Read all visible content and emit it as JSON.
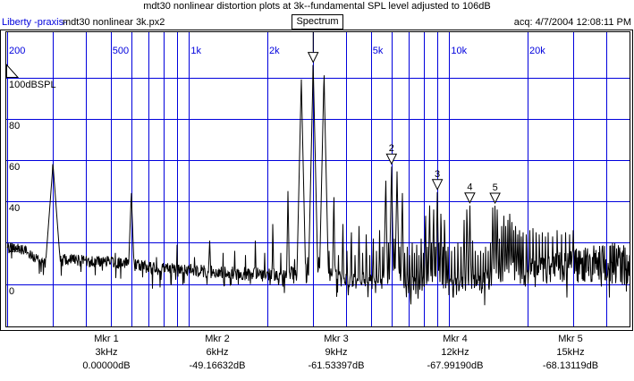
{
  "header": {
    "title": "mdt30 nonlinear distortion plots at 3k--fundamental SPL level adjusted to 106dB",
    "app_label": "Liberty -praxis-",
    "file_name": "mdt30 nonlinear 3k.px2",
    "view_button_label": "Spectrum",
    "acq_label": "acq: 4/7/2004 12:08:11 PM"
  },
  "colors": {
    "grid_blue": "#0000dd",
    "tick_label_blue": "#0000dd",
    "trace_black": "#000000",
    "frame_black": "#000000",
    "background": "#ffffff"
  },
  "markers_table": {
    "rows": [
      {
        "name": "Mkr 1",
        "freq": "3kHz",
        "level": "0.00000dB"
      },
      {
        "name": "Mkr 2",
        "freq": "6kHz",
        "level": "-49.16632dB"
      },
      {
        "name": "Mkr 3",
        "freq": "9kHz",
        "level": "-61.53397dB"
      },
      {
        "name": "Mkr 4",
        "freq": "12kHz",
        "level": "-67.99190dB"
      },
      {
        "name": "Mkr 5",
        "freq": "15kHz",
        "level": "-68.13119dB"
      }
    ]
  },
  "chart_data": {
    "type": "line",
    "title": "mdt30 nonlinear distortion plots at 3k--fundamental SPL level adjusted to 106dB",
    "y_unit": "dBSPL",
    "x_scale": "log",
    "xlim_hz": [
      200,
      49000
    ],
    "ylim_labeled_db": [
      0,
      100
    ],
    "grid": true,
    "x_gridlines_hz": [
      200,
      300,
      400,
      500,
      600,
      700,
      800,
      900,
      1000,
      2000,
      3000,
      4000,
      5000,
      6000,
      7000,
      8000,
      9000,
      10000,
      20000,
      30000,
      40000
    ],
    "y_gridlines_db": [
      100,
      80,
      60,
      40,
      20,
      0
    ],
    "x_tick_labels": [
      {
        "hz": 200,
        "label": "200"
      },
      {
        "hz": 500,
        "label": "500"
      },
      {
        "hz": 1000,
        "label": "1k"
      },
      {
        "hz": 2000,
        "label": "2k"
      },
      {
        "hz": 5000,
        "label": "5k"
      },
      {
        "hz": 10000,
        "label": "10k"
      },
      {
        "hz": 20000,
        "label": "20k"
      }
    ],
    "y_tick_labels": [
      {
        "db": 100,
        "label": "100dBSPL"
      },
      {
        "db": 80,
        "label": "80"
      },
      {
        "db": 60,
        "label": "60"
      },
      {
        "db": 40,
        "label": "40"
      },
      {
        "db": 20,
        "label": "20"
      },
      {
        "db": 0,
        "label": "0"
      }
    ],
    "fundamental": {
      "freq_hz": 3000,
      "db_spl": 106
    },
    "reference_flag": {
      "top_db_spl": 106,
      "bottom_db_spl": 100
    },
    "markers": [
      {
        "n": 1,
        "freq_hz": 3000,
        "rel_db": 0.0,
        "number_visible": false
      },
      {
        "n": 2,
        "freq_hz": 6000,
        "rel_db": -49.16632,
        "number_visible": true
      },
      {
        "n": 3,
        "freq_hz": 9000,
        "rel_db": -61.53397,
        "number_visible": true
      },
      {
        "n": 4,
        "freq_hz": 12000,
        "rel_db": -67.9919,
        "number_visible": true
      },
      {
        "n": 5,
        "freq_hz": 15000,
        "rel_db": -68.13119,
        "number_visible": true
      }
    ],
    "peaks_hz_dbspl_width": [
      [
        300,
        58,
        6
      ],
      [
        450,
        13
      ],
      [
        520,
        15,
        2
      ],
      [
        600,
        44,
        3
      ],
      [
        750,
        13
      ],
      [
        900,
        19
      ],
      [
        1050,
        13
      ],
      [
        1200,
        21,
        3
      ],
      [
        1350,
        15
      ],
      [
        1500,
        16
      ],
      [
        1650,
        14
      ],
      [
        1800,
        21
      ],
      [
        1950,
        15
      ],
      [
        2100,
        29
      ],
      [
        2250,
        15
      ],
      [
        2400,
        45
      ],
      [
        2550,
        12
      ],
      [
        2700,
        99,
        1.8
      ],
      [
        2850,
        13
      ],
      [
        3000,
        106,
        1.8
      ],
      [
        3150,
        13
      ],
      [
        3300,
        101,
        1.8
      ],
      [
        3450,
        16
      ],
      [
        3600,
        42
      ],
      [
        3750,
        14
      ],
      [
        3900,
        29
      ],
      [
        4050,
        16
      ],
      [
        4200,
        25
      ],
      [
        4350,
        14
      ],
      [
        4500,
        28
      ],
      [
        4650,
        15
      ],
      [
        4800,
        24
      ],
      [
        4950,
        14
      ],
      [
        5100,
        22
      ],
      [
        5250,
        16
      ],
      [
        5400,
        26
      ],
      [
        5550,
        18
      ],
      [
        5700,
        50,
        1.5
      ],
      [
        5850,
        20
      ],
      [
        6000,
        56.8,
        1.5
      ],
      [
        6150,
        22
      ],
      [
        6300,
        54.5,
        1.5
      ],
      [
        6450,
        18
      ],
      [
        6600,
        44
      ],
      [
        6750,
        15
      ],
      [
        6900,
        18
      ],
      [
        7050,
        14
      ],
      [
        7200,
        20
      ],
      [
        7350,
        15
      ],
      [
        7500,
        19
      ],
      [
        7650,
        14
      ],
      [
        7800,
        22
      ],
      [
        7950,
        15
      ],
      [
        8100,
        33
      ],
      [
        8250,
        18
      ],
      [
        8400,
        38
      ],
      [
        8550,
        20
      ],
      [
        8700,
        36
      ],
      [
        8850,
        18
      ],
      [
        9000,
        44.5
      ],
      [
        9150,
        20
      ],
      [
        9300,
        34
      ],
      [
        9450,
        18
      ],
      [
        9600,
        31
      ],
      [
        9750,
        16
      ],
      [
        9900,
        18
      ],
      [
        10200,
        16
      ],
      [
        10500,
        18
      ],
      [
        10800,
        20
      ],
      [
        11100,
        18
      ],
      [
        11400,
        31
      ],
      [
        11700,
        36
      ],
      [
        12000,
        38
      ],
      [
        12300,
        21
      ],
      [
        12600,
        16
      ],
      [
        12900,
        14
      ],
      [
        13200,
        16
      ],
      [
        13500,
        15
      ],
      [
        13800,
        18
      ],
      [
        14100,
        16
      ],
      [
        14400,
        20
      ],
      [
        14700,
        37
      ],
      [
        15000,
        37.9
      ],
      [
        15300,
        36
      ],
      [
        15600,
        22
      ],
      [
        15900,
        28
      ],
      [
        16200,
        33
      ],
      [
        16500,
        28
      ],
      [
        16800,
        31
      ],
      [
        17100,
        34
      ],
      [
        17400,
        30
      ],
      [
        17700,
        26
      ],
      [
        18000,
        28
      ],
      [
        18300,
        24
      ],
      [
        18600,
        26
      ],
      [
        18900,
        23
      ],
      [
        19200,
        25
      ],
      [
        19800,
        24
      ],
      [
        20400,
        26
      ],
      [
        21000,
        27
      ],
      [
        21600,
        25
      ],
      [
        22200,
        24
      ],
      [
        22800,
        25
      ],
      [
        23400,
        23
      ],
      [
        24000,
        25
      ],
      [
        25000,
        23
      ],
      [
        26000,
        26
      ],
      [
        27000,
        24
      ],
      [
        28000,
        25
      ],
      [
        29000,
        24
      ],
      [
        30000,
        26
      ]
    ],
    "noise_floor_hz_db": [
      [
        200,
        18
      ],
      [
        240,
        16
      ],
      [
        270,
        10
      ],
      [
        330,
        12
      ],
      [
        400,
        11
      ],
      [
        500,
        11
      ],
      [
        700,
        8
      ],
      [
        900,
        7
      ],
      [
        1200,
        6
      ],
      [
        1600,
        5
      ],
      [
        2200,
        4.5
      ],
      [
        3000,
        6
      ],
      [
        4000,
        2
      ],
      [
        5000,
        1
      ],
      [
        6500,
        0
      ],
      [
        8000,
        -2
      ],
      [
        10000,
        -2
      ],
      [
        12000,
        -1
      ],
      [
        15000,
        3
      ],
      [
        18000,
        4.5
      ],
      [
        22000,
        6
      ],
      [
        27000,
        8
      ],
      [
        33000,
        9
      ],
      [
        40000,
        10
      ],
      [
        49000,
        9
      ]
    ],
    "noise_jitter_hz_db": [
      [
        200,
        2.5
      ],
      [
        500,
        3
      ],
      [
        1000,
        3
      ],
      [
        2000,
        3.5
      ],
      [
        4000,
        4
      ],
      [
        8000,
        4.5
      ],
      [
        12000,
        5
      ],
      [
        15000,
        6
      ],
      [
        18000,
        7
      ],
      [
        22000,
        7.5
      ],
      [
        27000,
        8
      ],
      [
        33000,
        9
      ],
      [
        40000,
        10
      ],
      [
        49000,
        11
      ]
    ]
  }
}
